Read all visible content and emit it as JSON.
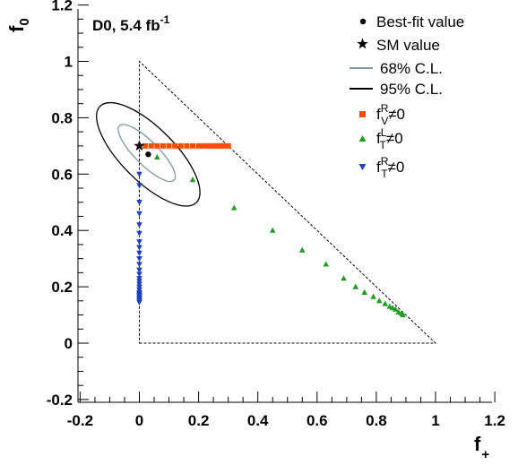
{
  "chart_data": {
    "type": "scatter",
    "experiment": {
      "label": "D0, 5.4 fb",
      "exponent": "-1"
    },
    "xlabel": {
      "main": "f",
      "sub": "+"
    },
    "ylabel": {
      "main": "f",
      "sub": "0"
    },
    "xlim": [
      -0.2,
      1.2
    ],
    "ylim": [
      -0.2,
      1.2
    ],
    "xticks": [
      "-0.2",
      "0",
      "0.2",
      "0.4",
      "0.6",
      "0.8",
      "1",
      "1.2"
    ],
    "yticks": [
      "-0.2",
      "0",
      "0.2",
      "0.4",
      "0.6",
      "0.8",
      "1",
      "1.2"
    ],
    "xtick_values": [
      -0.2,
      0,
      0.2,
      0.4,
      0.6,
      0.8,
      1.0,
      1.2
    ],
    "ytick_values": [
      -0.2,
      0,
      0.2,
      0.4,
      0.6,
      0.8,
      1.0,
      1.2
    ],
    "physical_region": {
      "vertices": [
        [
          0,
          0
        ],
        [
          1,
          0
        ],
        [
          0,
          1
        ]
      ],
      "style": "dashed"
    },
    "best_fit": {
      "label": "Best-fit value",
      "x": 0.03,
      "y": 0.67
    },
    "sm_value": {
      "label": "SM value",
      "x": 0.0,
      "y": 0.7
    },
    "contours": [
      {
        "label": "68% C.L.",
        "color": "#7f97a8",
        "cx": 0.025,
        "cy": 0.675,
        "semi_major": 0.13,
        "semi_minor": 0.04,
        "angle_deg": -45
      },
      {
        "label": "95% C.L.",
        "color": "#000000",
        "cx": 0.03,
        "cy": 0.67,
        "semi_major": 0.23,
        "semi_minor": 0.09,
        "angle_deg": -45
      }
    ],
    "series": [
      {
        "legend_main": "f",
        "legend_sup": "R",
        "legend_sub": "V",
        "legend_suffix": "≠0",
        "marker": "square",
        "color": "#ff4d00",
        "x": [
          0.02,
          0.04,
          0.06,
          0.08,
          0.1,
          0.12,
          0.14,
          0.16,
          0.18,
          0.2,
          0.215,
          0.23,
          0.245,
          0.26,
          0.27,
          0.28,
          0.29,
          0.3
        ],
        "y": [
          0.7,
          0.7,
          0.7,
          0.7,
          0.7,
          0.7,
          0.7,
          0.7,
          0.7,
          0.7,
          0.7,
          0.7,
          0.7,
          0.7,
          0.7,
          0.7,
          0.7,
          0.7
        ]
      },
      {
        "legend_main": "f",
        "legend_sup": "L",
        "legend_sub": "T",
        "legend_suffix": "≠0",
        "marker": "triangle-up",
        "color": "#1f9e1f",
        "x": [
          0.06,
          0.18,
          0.32,
          0.45,
          0.55,
          0.63,
          0.69,
          0.73,
          0.76,
          0.79,
          0.81,
          0.83,
          0.845,
          0.855,
          0.865,
          0.875,
          0.885,
          0.89
        ],
        "y": [
          0.66,
          0.58,
          0.48,
          0.4,
          0.33,
          0.28,
          0.23,
          0.2,
          0.18,
          0.165,
          0.15,
          0.14,
          0.13,
          0.125,
          0.12,
          0.11,
          0.105,
          0.1
        ]
      },
      {
        "legend_main": "f",
        "legend_sup": "R",
        "legend_sub": "T",
        "legend_suffix": "≠0",
        "marker": "triangle-down",
        "color": "#1f3fbf",
        "x": [
          0,
          0,
          0,
          0,
          0,
          0,
          0,
          0,
          0,
          0,
          0,
          0,
          0,
          0,
          0,
          0,
          0,
          0,
          0,
          0,
          0,
          0,
          0,
          0,
          0,
          0
        ],
        "y": [
          0.6,
          0.56,
          0.5,
          0.46,
          0.42,
          0.39,
          0.36,
          0.34,
          0.32,
          0.3,
          0.28,
          0.26,
          0.245,
          0.23,
          0.22,
          0.21,
          0.2,
          0.19,
          0.18,
          0.175,
          0.17,
          0.165,
          0.16,
          0.155,
          0.15,
          0.145
        ]
      }
    ]
  }
}
